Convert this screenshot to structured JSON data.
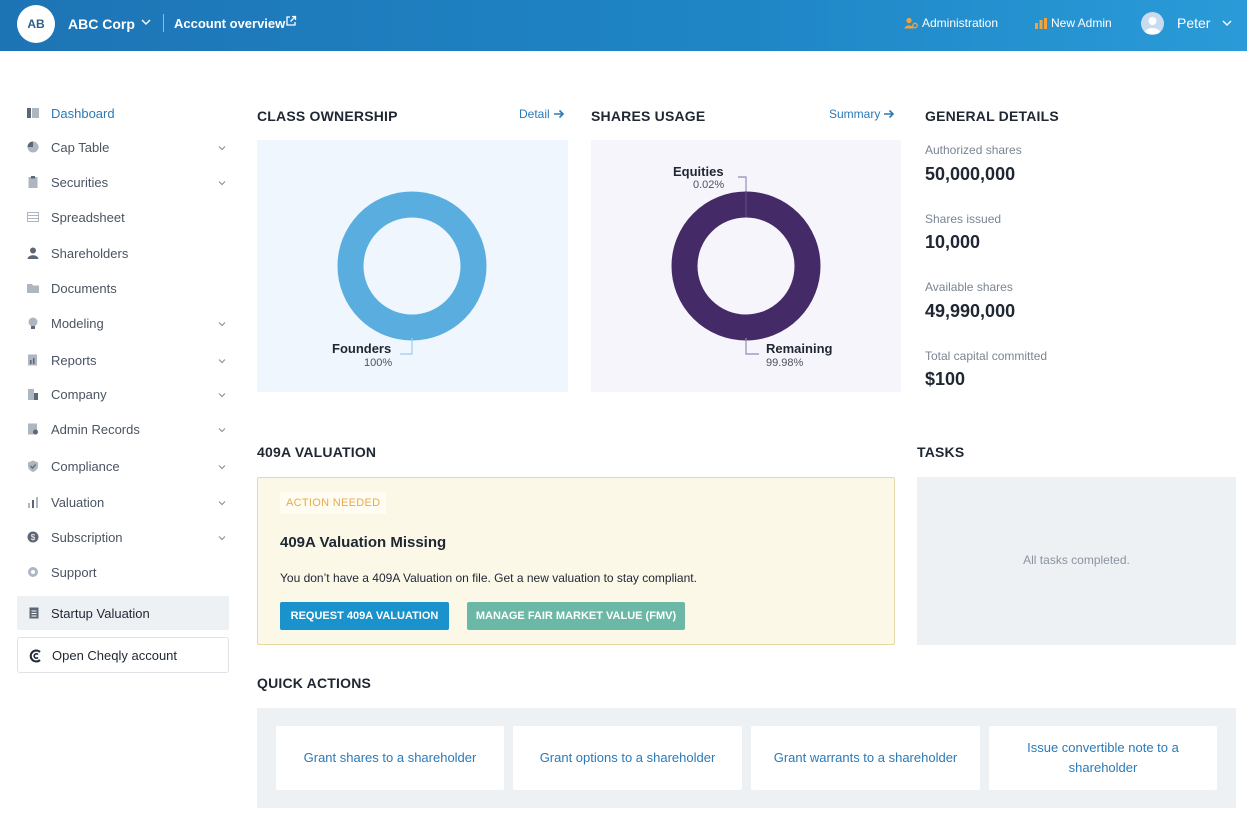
{
  "header": {
    "company_initials": "AB",
    "company_name": "ABC Corp",
    "account_link": "Account overview",
    "administration": "Administration",
    "new_admin": "New Admin",
    "user_name": "Peter"
  },
  "sidebar": {
    "items": [
      {
        "label": "Dashboard",
        "icon": "dashboard-icon",
        "active": true,
        "has_chevron": false
      },
      {
        "label": "Cap Table",
        "icon": "pie-icon",
        "has_chevron": true
      },
      {
        "label": "Securities",
        "icon": "clipboard-icon",
        "has_chevron": true
      },
      {
        "label": "Spreadsheet",
        "icon": "spreadsheet-icon",
        "has_chevron": false
      },
      {
        "label": "Shareholders",
        "icon": "person-icon",
        "has_chevron": false
      },
      {
        "label": "Documents",
        "icon": "folder-icon",
        "has_chevron": false
      },
      {
        "label": "Modeling",
        "icon": "bulb-icon",
        "has_chevron": true
      },
      {
        "label": "Reports",
        "icon": "report-icon",
        "has_chevron": true
      },
      {
        "label": "Company",
        "icon": "building-icon",
        "has_chevron": true
      },
      {
        "label": "Admin Records",
        "icon": "records-icon",
        "has_chevron": true
      },
      {
        "label": "Compliance",
        "icon": "shield-icon",
        "has_chevron": true
      },
      {
        "label": "Valuation",
        "icon": "chart-icon",
        "has_chevron": true
      },
      {
        "label": "Subscription",
        "icon": "dollar-icon",
        "has_chevron": true
      },
      {
        "label": "Support",
        "icon": "support-icon",
        "has_chevron": false
      }
    ],
    "startup_valuation": "Startup Valuation",
    "open_cheqly": "Open Cheqly account"
  },
  "class_ownership": {
    "title": "CLASS OWNERSHIP",
    "link": "Detail",
    "slices": [
      {
        "label": "Founders",
        "pct": "100%",
        "value": 100,
        "color": "#5aaedf"
      }
    ]
  },
  "shares_usage": {
    "title": "SHARES USAGE",
    "link": "Summary",
    "slices": [
      {
        "label": "Equities",
        "pct": "0.02%",
        "value": 0.02,
        "color": "#4a2a6a"
      },
      {
        "label": "Remaining",
        "pct": "99.98%",
        "value": 99.98,
        "color": "#452a68"
      }
    ]
  },
  "general_details": {
    "title": "GENERAL DETAILS",
    "rows": [
      {
        "label": "Authorized shares",
        "value": "50,000,000"
      },
      {
        "label": "Shares issued",
        "value": "10,000"
      },
      {
        "label": "Available shares",
        "value": "49,990,000"
      },
      {
        "label": "Total capital committed",
        "value": "$100"
      }
    ]
  },
  "valuation": {
    "title": "409A VALUATION",
    "badge": "ACTION NEEDED",
    "heading": "409A Valuation Missing",
    "text": "You don’t have a 409A Valuation on file. Get a new valuation to stay compliant.",
    "request_button": "REQUEST 409A VALUATION",
    "fmv_button": "MANAGE FAIR MARKET VALUE (FMV)"
  },
  "tasks": {
    "title": "TASKS",
    "empty_text": "All tasks completed."
  },
  "quick_actions": {
    "title": "QUICK ACTIONS",
    "items": [
      "Grant shares to a shareholder",
      "Grant options to a shareholder",
      "Grant warrants to a shareholder",
      "Issue convertible note to a shareholder"
    ]
  },
  "colors": {
    "header_blue": "#1f86c6",
    "link_blue": "#2a7ab8",
    "donut_blue": "#5aaedf",
    "donut_purple": "#452a68",
    "warning_orange": "#e8a94b",
    "teal_button": "#6bb8a6"
  }
}
